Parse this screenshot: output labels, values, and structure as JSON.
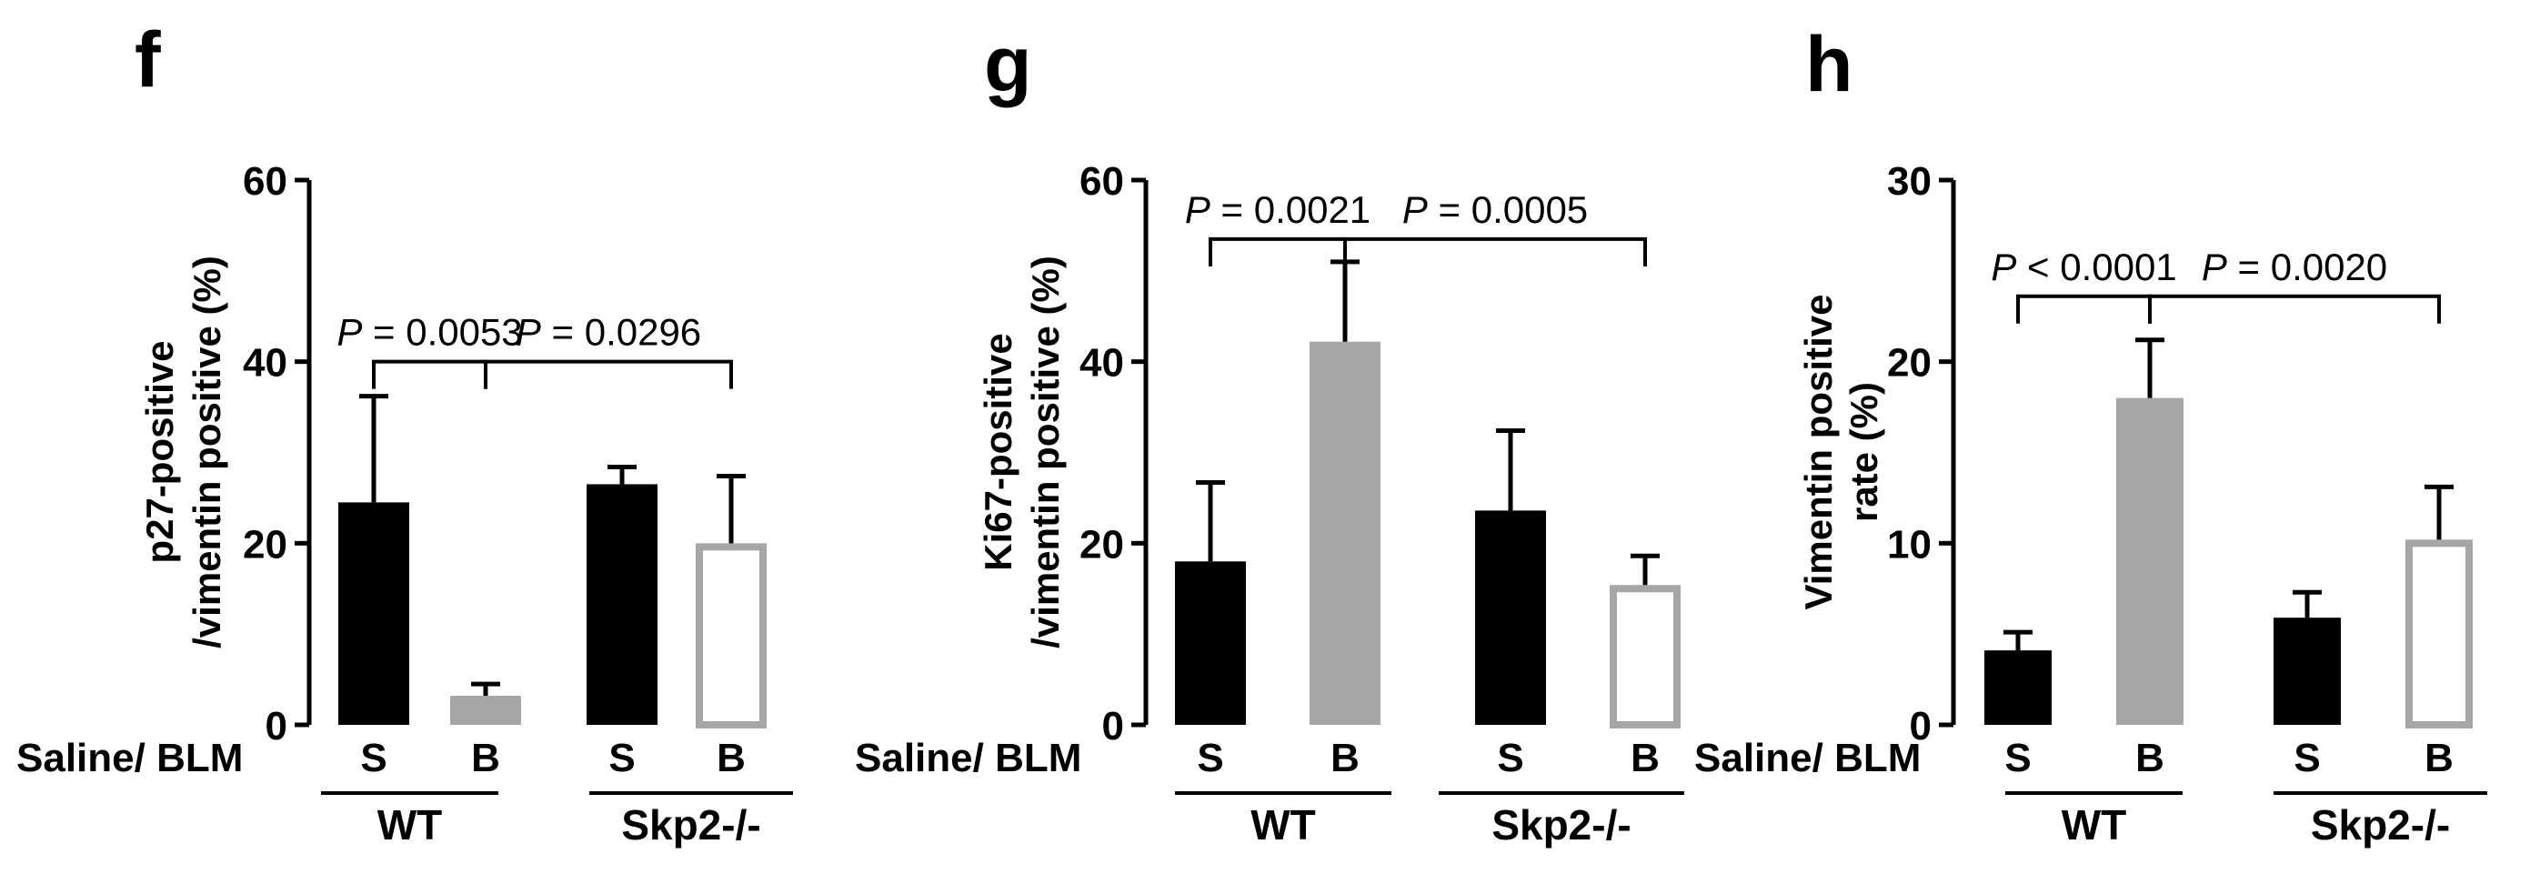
{
  "row_label": "Saline/ BLM",
  "chart_data": [
    {
      "type": "bar",
      "panel": "f",
      "ylabel_lines": [
        "p27-positive",
        "/vimentin positive (%)"
      ],
      "ylim": [
        0,
        60
      ],
      "yticks": [
        "0",
        "20",
        "40",
        "60"
      ],
      "categories": [
        "S",
        "B",
        "S",
        "B"
      ],
      "groups": [
        {
          "label": "WT",
          "span": [
            0,
            1
          ]
        },
        {
          "label": "Skp2-/-",
          "span": [
            2,
            3
          ]
        }
      ],
      "values": [
        24.5,
        3.2,
        26.5,
        20.0
      ],
      "errors": [
        11.7,
        1.3,
        1.9,
        7.4
      ],
      "bar_styles": [
        "black",
        "gray",
        "black",
        "open"
      ],
      "comparisons": [
        {
          "from": 0,
          "to": 1,
          "p_symbol": "P",
          "p_text": " = 0.0053",
          "y": 40
        },
        {
          "from": 1,
          "to": 3,
          "p_symbol": "P",
          "p_text": " = 0.0296",
          "y": 40
        }
      ]
    },
    {
      "type": "bar",
      "panel": "g",
      "ylabel_lines": [
        "Ki67-positive",
        "/vimentin positive (%)"
      ],
      "ylim": [
        0,
        60
      ],
      "yticks": [
        "0",
        "20",
        "40",
        "60"
      ],
      "categories": [
        "S",
        "B",
        "S",
        "B"
      ],
      "groups": [
        {
          "label": "WT",
          "span": [
            0,
            1
          ]
        },
        {
          "label": "Skp2-/-",
          "span": [
            2,
            3
          ]
        }
      ],
      "values": [
        18.0,
        42.2,
        23.6,
        15.4
      ],
      "errors": [
        8.7,
        8.8,
        8.8,
        3.2
      ],
      "bar_styles": [
        "black",
        "gray",
        "black",
        "open"
      ],
      "comparisons": [
        {
          "from": 0,
          "to": 1,
          "p_symbol": "P",
          "p_text": " = 0.0021",
          "y": 53.5
        },
        {
          "from": 1,
          "to": 3,
          "p_symbol": "P",
          "p_text": " = 0.0005",
          "y": 53.5
        }
      ]
    },
    {
      "type": "bar",
      "panel": "h",
      "ylabel_lines": [
        "Vimentin positive",
        "rate (%)"
      ],
      "ylim": [
        0,
        30
      ],
      "yticks": [
        "0",
        "10",
        "20",
        "30"
      ],
      "categories": [
        "S",
        "B",
        "S",
        "B"
      ],
      "groups": [
        {
          "label": "WT",
          "span": [
            0,
            1
          ]
        },
        {
          "label": "Skp2-/-",
          "span": [
            2,
            3
          ]
        }
      ],
      "values": [
        4.1,
        18.0,
        5.9,
        10.2
      ],
      "errors": [
        1.0,
        3.2,
        1.4,
        2.9
      ],
      "bar_styles": [
        "black",
        "gray",
        "black",
        "open"
      ],
      "comparisons": [
        {
          "from": 0,
          "to": 1,
          "p_symbol": "P",
          "p_text": " < 0.0001",
          "y": 23.6
        },
        {
          "from": 1,
          "to": 3,
          "p_symbol": "P",
          "p_text": " = 0.0020",
          "y": 23.6
        }
      ]
    }
  ],
  "colors": {
    "black_bar": "#000000",
    "gray_bar": "#a6a6a6",
    "open_bar_stroke": "#a6a6a6",
    "axis": "#000000"
  }
}
